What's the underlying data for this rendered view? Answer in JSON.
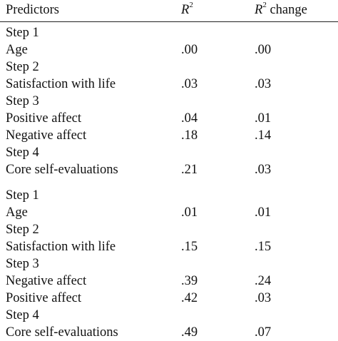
{
  "table": {
    "header": {
      "predictors": "Predictors",
      "r2_letter": "R",
      "r2_sup": "2",
      "r2_change_letter": "R",
      "r2_change_sup": "2",
      "r2_change_word": " change"
    },
    "rows": [
      {
        "label": "Step 1",
        "r2": "",
        "r2_change": ""
      },
      {
        "label": "Age",
        "r2": ".00",
        "r2_change": ".00"
      },
      {
        "label": "Step 2",
        "r2": "",
        "r2_change": ""
      },
      {
        "label": "Satisfaction with life",
        "r2": ".03",
        "r2_change": ".03"
      },
      {
        "label": "Step 3",
        "r2": "",
        "r2_change": ""
      },
      {
        "label": "Positive affect",
        "r2": ".04",
        "r2_change": ".01"
      },
      {
        "label": "Negative affect",
        "r2": ".18",
        "r2_change": ".14"
      },
      {
        "label": "Step 4",
        "r2": "",
        "r2_change": ""
      },
      {
        "label": "Core self-evaluations",
        "r2": ".21",
        "r2_change": ".03"
      },
      {
        "label": "Step 1",
        "r2": "",
        "r2_change": ""
      },
      {
        "label": "Age",
        "r2": ".01",
        "r2_change": ".01"
      },
      {
        "label": "Step 2",
        "r2": "",
        "r2_change": ""
      },
      {
        "label": "Satisfaction with life",
        "r2": ".15",
        "r2_change": ".15"
      },
      {
        "label": "Step 3",
        "r2": "",
        "r2_change": ""
      },
      {
        "label": "Negative affect",
        "r2": ".39",
        "r2_change": ".24"
      },
      {
        "label": "Positive affect",
        "r2": ".42",
        "r2_change": ".03"
      },
      {
        "label": "Step 4",
        "r2": "",
        "r2_change": ""
      },
      {
        "label": "Core self-evaluations",
        "r2": ".49",
        "r2_change": ".07"
      }
    ]
  }
}
